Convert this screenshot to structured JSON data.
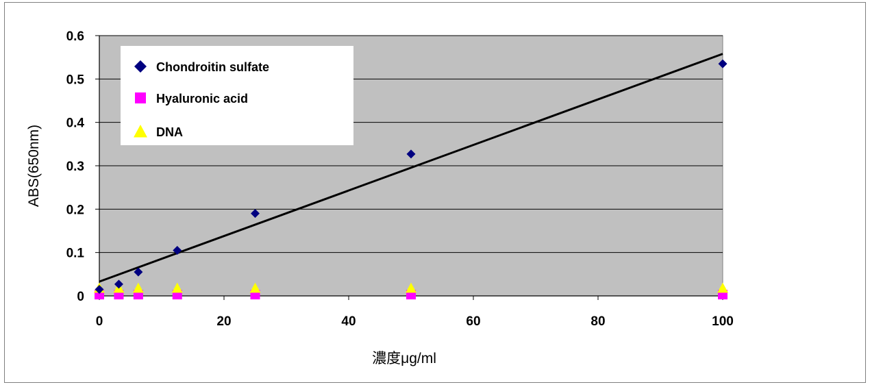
{
  "chart_data": {
    "type": "scatter",
    "title": "",
    "xlabel": "濃度μg/ml",
    "ylabel": "ABS(650nm)",
    "xlim": [
      0,
      100
    ],
    "ylim": [
      0,
      0.6
    ],
    "x_ticks": [
      "0",
      "20",
      "40",
      "60",
      "80",
      "100"
    ],
    "y_ticks": [
      "0",
      "0.1",
      "0.2",
      "0.3",
      "0.4",
      "0.5",
      "0.6"
    ],
    "grid": "horizontal",
    "legend_position": "top-left",
    "plot_background": "#c0c0c0",
    "series": [
      {
        "name": "Chondroitin sulfate",
        "marker": "diamond",
        "color": "#000080",
        "x": [
          0,
          3.125,
          6.25,
          12.5,
          25,
          50,
          100
        ],
        "y": [
          0.015,
          0.027,
          0.055,
          0.105,
          0.19,
          0.327,
          0.535
        ]
      },
      {
        "name": "Hyaluronic acid",
        "marker": "square",
        "color": "#ff00ff",
        "x": [
          0,
          3.125,
          6.25,
          12.5,
          25,
          50,
          100
        ],
        "y": [
          0.003,
          0.003,
          0.003,
          0.003,
          0.003,
          0.003,
          0.003
        ]
      },
      {
        "name": "DNA",
        "marker": "triangle",
        "color": "#ffff00",
        "x": [
          0,
          3.125,
          6.25,
          12.5,
          25,
          50,
          100
        ],
        "y": [
          0.018,
          0.018,
          0.018,
          0.018,
          0.018,
          0.018,
          0.018
        ]
      }
    ],
    "trendline": {
      "series": "Chondroitin sulfate",
      "color": "#000000",
      "x": [
        0,
        100
      ],
      "y": [
        0.033,
        0.558
      ]
    }
  }
}
